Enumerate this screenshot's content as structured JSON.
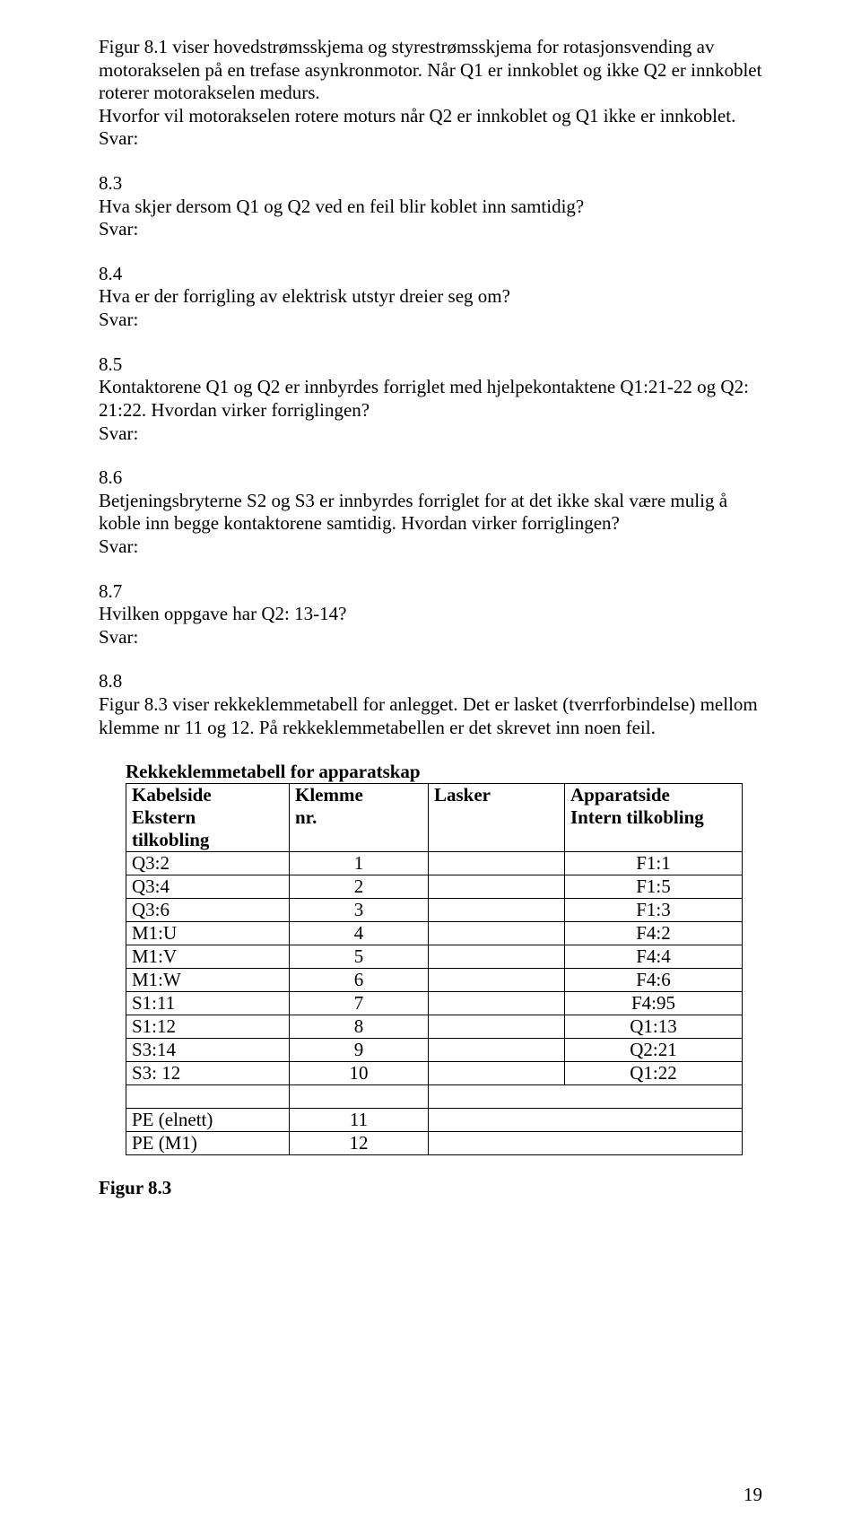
{
  "intro": "Figur 8.1 viser hovedstrømsskjema og styrestrømsskjema for rotasjonsvending av motorakselen på en trefase asynkronmotor. Når Q1 er innkoblet og ikke Q2 er innkoblet roterer motorakselen medurs.",
  "q8_2": "Hvorfor vil motorakselen rotere moturs når Q2 er innkoblet og Q1 ikke er innkoblet.",
  "svar": "Svar:",
  "q8_3_num": "8.3",
  "q8_3": "Hva skjer dersom Q1 og Q2 ved en feil blir koblet inn samtidig?",
  "q8_4_num": "8.4",
  "q8_4": "Hva er der forrigling av elektrisk utstyr dreier seg om?",
  "q8_5_num": "8.5",
  "q8_5": "Kontaktorene Q1 og Q2 er innbyrdes forriglet med hjelpekontaktene Q1:21-22 og Q2: 21:22. Hvordan virker forriglingen?",
  "q8_6_num": "8.6",
  "q8_6": "Betjeningsbryterne S2 og S3 er innbyrdes forriglet for at det ikke skal være mulig å koble inn begge kontaktorene samtidig. Hvordan virker forriglingen?",
  "q8_7_num": "8.7",
  "q8_7": "Hvilken oppgave har Q2: 13-14?",
  "q8_8_num": "8.8",
  "q8_8": "Figur 8.3 viser rekkeklemmetabell for anlegget. Det er lasket (tverrforbindelse) mellom klemme nr 11 og 12. På rekkeklemmetabellen er det skrevet inn noen feil.",
  "table_title": "Rekkeklemmetabell for apparatskap",
  "headers": {
    "c1a": "Kabelside",
    "c1b": "Ekstern",
    "c1c": "tilkobling",
    "c2a": "Klemme",
    "c2b": "nr.",
    "c3a": "Lasker",
    "c4a": "Apparatside",
    "c4b": "Intern tilkobling"
  },
  "rows": [
    {
      "c1": "Q3:2",
      "c2": "1",
      "c3": "",
      "c4": "F1:1"
    },
    {
      "c1": "Q3:4",
      "c2": "2",
      "c3": "",
      "c4": "F1:5"
    },
    {
      "c1": "Q3:6",
      "c2": "3",
      "c3": "",
      "c4": "F1:3"
    },
    {
      "c1": "M1:U",
      "c2": "4",
      "c3": "",
      "c4": "F4:2"
    },
    {
      "c1": "M1:V",
      "c2": "5",
      "c3": "",
      "c4": "F4:4"
    },
    {
      "c1": "M1:W",
      "c2": "6",
      "c3": "",
      "c4": "F4:6"
    },
    {
      "c1": "S1:11",
      "c2": "7",
      "c3": "",
      "c4": "F4:95"
    },
    {
      "c1": "S1:12",
      "c2": "8",
      "c3": "",
      "c4": "Q1:13"
    },
    {
      "c1": "S3:14",
      "c2": "9",
      "c3": "",
      "c4": "Q2:21"
    },
    {
      "c1": "S3: 12",
      "c2": "10",
      "c3": "",
      "c4": "Q1:22"
    }
  ],
  "rows2": [
    {
      "c1": "PE (elnett)",
      "c2": "11",
      "c3": "",
      "c4": ""
    },
    {
      "c1": "PE (M1)",
      "c2": "12",
      "c3": "",
      "c4": ""
    }
  ],
  "fig_caption": "Figur 8.3",
  "page_num": "19"
}
